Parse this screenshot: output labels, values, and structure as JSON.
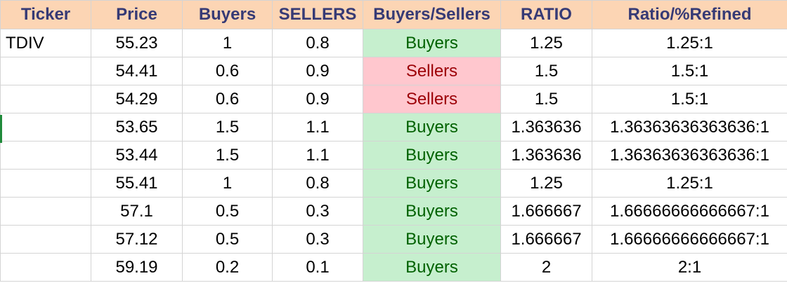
{
  "colors": {
    "header_bg": "#fcd5b4",
    "header_text": "#363a75",
    "buyers_bg": "#c6efce",
    "buyers_text": "#006100",
    "sellers_bg": "#ffc7ce",
    "sellers_text": "#9c0006"
  },
  "headers": [
    "Ticker",
    "Price",
    "Buyers",
    "SELLERS",
    "Buyers/Sellers",
    "RATIO",
    "Ratio/%Refined"
  ],
  "rows": [
    {
      "ticker": "TDIV",
      "price": "55.23",
      "buyers": "1",
      "sellers": "0.8",
      "signal": "Buyers",
      "signal_type": "buyers",
      "ratio": "1.25",
      "refined": "1.25:1"
    },
    {
      "ticker": "",
      "price": "54.41",
      "buyers": "0.6",
      "sellers": "0.9",
      "signal": "Sellers",
      "signal_type": "sellers",
      "ratio": "1.5",
      "refined": "1.5:1"
    },
    {
      "ticker": "",
      "price": "54.29",
      "buyers": "0.6",
      "sellers": "0.9",
      "signal": "Sellers",
      "signal_type": "sellers",
      "ratio": "1.5",
      "refined": "1.5:1"
    },
    {
      "ticker": "",
      "price": "53.65",
      "buyers": "1.5",
      "sellers": "1.1",
      "signal": "Buyers",
      "signal_type": "buyers",
      "ratio": "1.363636",
      "refined": "1.36363636363636:1"
    },
    {
      "ticker": "",
      "price": "53.44",
      "buyers": "1.5",
      "sellers": "1.1",
      "signal": "Buyers",
      "signal_type": "buyers",
      "ratio": "1.363636",
      "refined": "1.36363636363636:1"
    },
    {
      "ticker": "",
      "price": "55.41",
      "buyers": "1",
      "sellers": "0.8",
      "signal": "Buyers",
      "signal_type": "buyers",
      "ratio": "1.25",
      "refined": "1.25:1"
    },
    {
      "ticker": "",
      "price": "57.1",
      "buyers": "0.5",
      "sellers": "0.3",
      "signal": "Buyers",
      "signal_type": "buyers",
      "ratio": "1.666667",
      "refined": "1.66666666666667:1"
    },
    {
      "ticker": "",
      "price": "57.12",
      "buyers": "0.5",
      "sellers": "0.3",
      "signal": "Buyers",
      "signal_type": "buyers",
      "ratio": "1.666667",
      "refined": "1.66666666666667:1"
    },
    {
      "ticker": "",
      "price": "59.19",
      "buyers": "0.2",
      "sellers": "0.1",
      "signal": "Buyers",
      "signal_type": "buyers",
      "ratio": "2",
      "refined": "2:1"
    }
  ]
}
